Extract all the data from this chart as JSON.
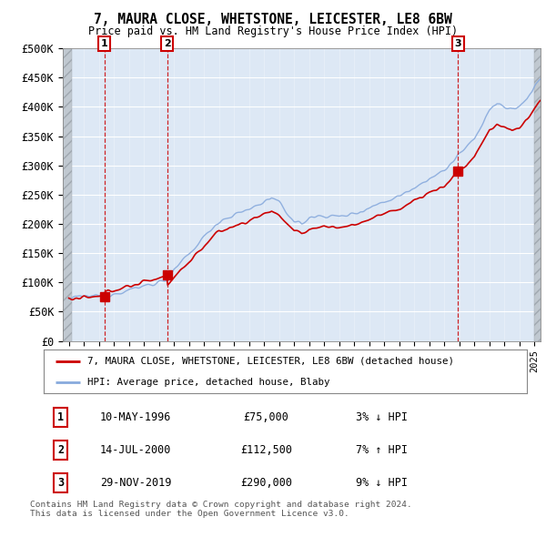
{
  "title": "7, MAURA CLOSE, WHETSTONE, LEICESTER, LE8 6BW",
  "subtitle": "Price paid vs. HM Land Registry's House Price Index (HPI)",
  "ylim": [
    0,
    500000
  ],
  "yticks": [
    0,
    50000,
    100000,
    150000,
    200000,
    250000,
    300000,
    350000,
    400000,
    450000,
    500000
  ],
  "ytick_labels": [
    "£0",
    "£50K",
    "£100K",
    "£150K",
    "£200K",
    "£250K",
    "£300K",
    "£350K",
    "£400K",
    "£450K",
    "£500K"
  ],
  "xlim_start": 1993.6,
  "xlim_end": 2025.4,
  "transactions": [
    {
      "num": 1,
      "date": "10-MAY-1996",
      "price": 75000,
      "year": 1996.36,
      "hpi_relation": "3% ↓ HPI"
    },
    {
      "num": 2,
      "date": "14-JUL-2000",
      "price": 112500,
      "year": 2000.54,
      "hpi_relation": "7% ↑ HPI"
    },
    {
      "num": 3,
      "date": "29-NOV-2019",
      "price": 290000,
      "year": 2019.91,
      "hpi_relation": "9% ↓ HPI"
    }
  ],
  "legend_property_label": "7, MAURA CLOSE, WHETSTONE, LEICESTER, LE8 6BW (detached house)",
  "legend_hpi_label": "HPI: Average price, detached house, Blaby",
  "property_line_color": "#cc0000",
  "hpi_line_color": "#88aadd",
  "vline_color": "#cc0000",
  "footer_text": "Contains HM Land Registry data © Crown copyright and database right 2024.\nThis data is licensed under the Open Government Licence v3.0.",
  "background_color": "#ffffff",
  "plot_bg_color": "#dde8f5",
  "hatch_bg_color": "#c8d0d8"
}
